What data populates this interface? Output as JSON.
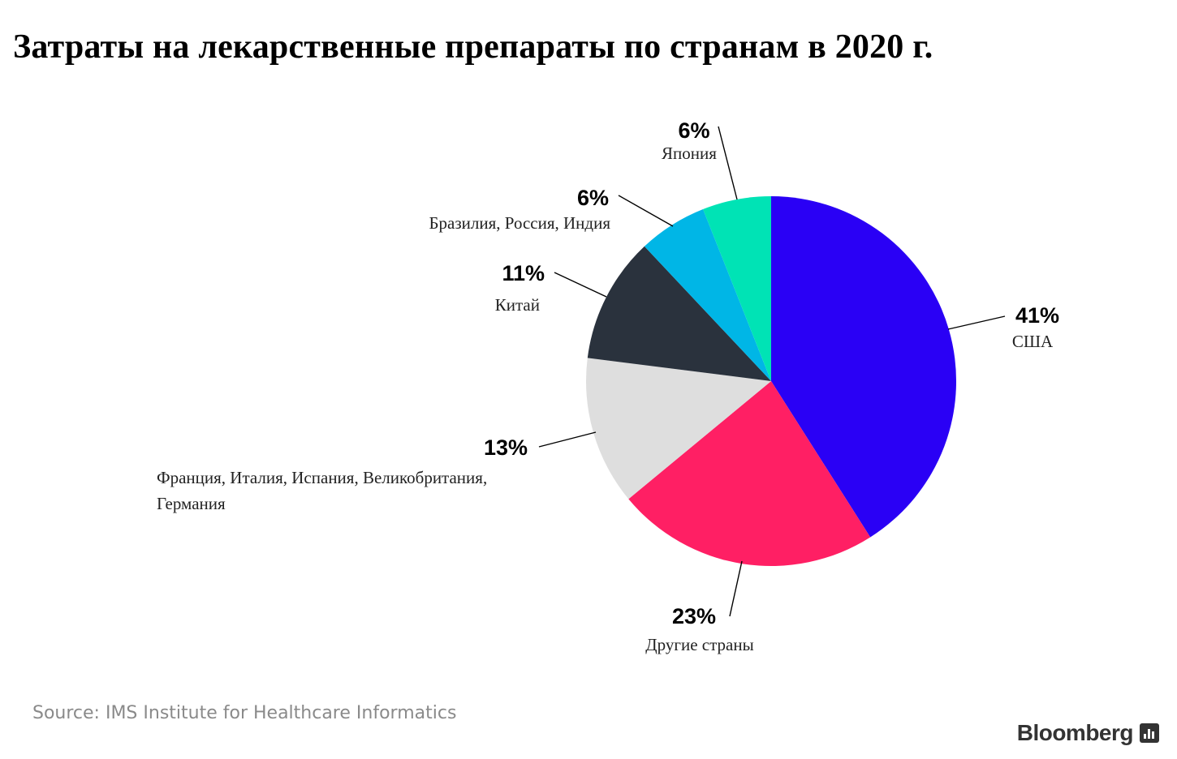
{
  "chart_data": {
    "type": "pie",
    "title": "Затраты на лекарственные препараты по странам в 2020 г.",
    "slices": [
      {
        "label": "США",
        "value": 41,
        "value_label": "41%",
        "color": "#2a00f5"
      },
      {
        "label": "Другие страны",
        "value": 23,
        "value_label": "23%",
        "color": "#ff1f64"
      },
      {
        "label": "Франция, Италия, Испания, Великобритания, Германия",
        "label_lines": [
          "Франция, Италия, Испания, Великобритания,",
          "Германия"
        ],
        "value": 13,
        "value_label": "13%",
        "color": "#dedede"
      },
      {
        "label": "Китай",
        "value": 11,
        "value_label": "11%",
        "color": "#2a323d"
      },
      {
        "label": "Бразилия, Россия, Индия",
        "value": 6,
        "value_label": "6%",
        "color": "#00b6e6"
      },
      {
        "label": "Япония",
        "value": 6,
        "value_label": "6%",
        "color": "#00e3b5"
      }
    ]
  },
  "source": "Source: IMS Institute for Healthcare Informatics",
  "brand": "Bloomberg",
  "brand_icon": "bar-chart-icon"
}
